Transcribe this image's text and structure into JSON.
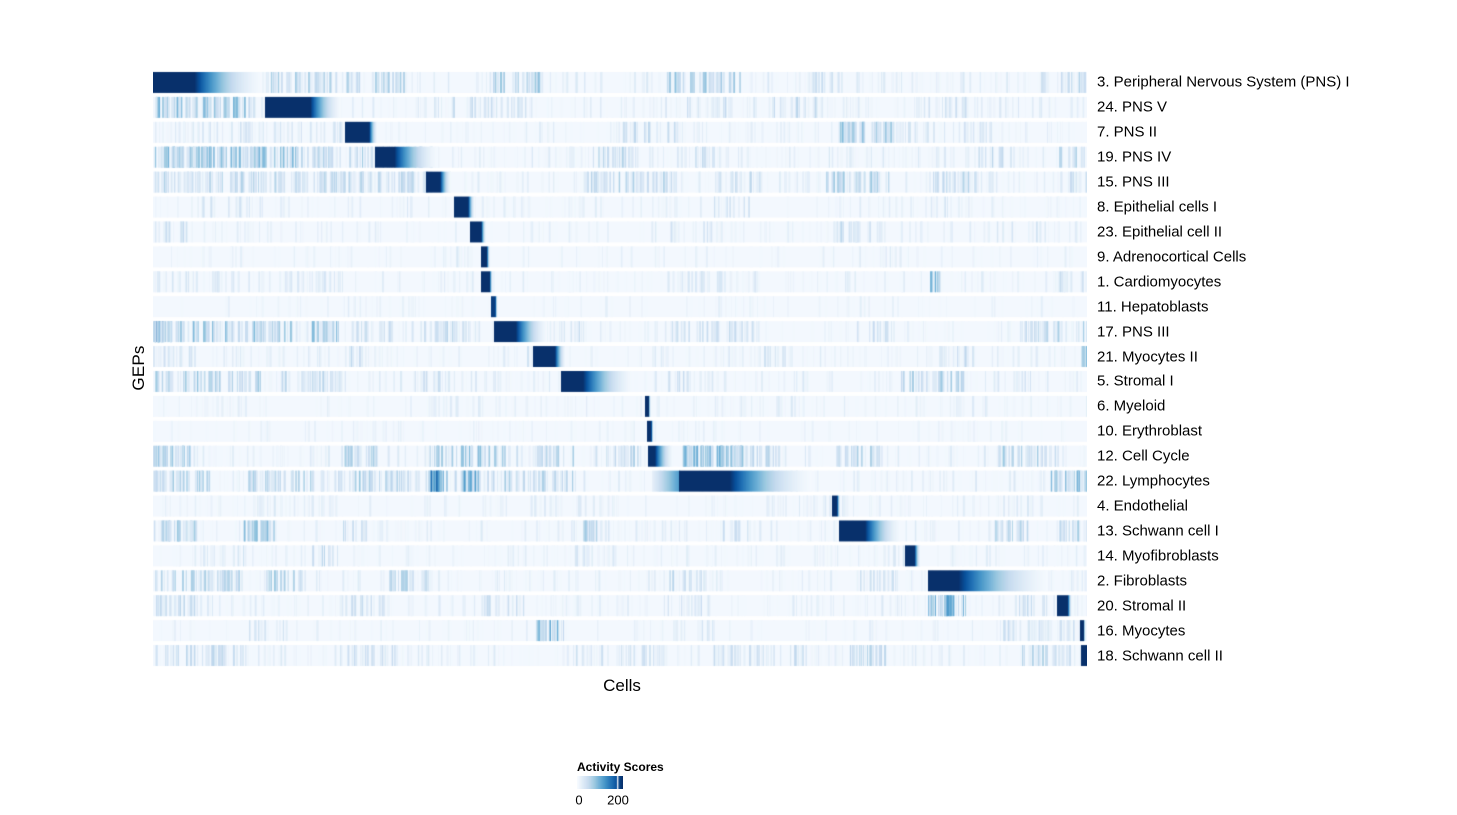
{
  "chart_data": {
    "type": "heatmap",
    "title": "",
    "xlabel": "Cells",
    "ylabel": "GEPs",
    "legend": {
      "title": "Activity Scores",
      "min_label": "0",
      "tick_label": "200",
      "min_value": 0,
      "tick_value": 200,
      "tick_frac": 0.885,
      "position": "bottom-center"
    },
    "colormap_stops": [
      [
        0.0,
        "#f7fbff"
      ],
      [
        0.125,
        "#deebf7"
      ],
      [
        0.25,
        "#c6dbef"
      ],
      [
        0.375,
        "#9ecae1"
      ],
      [
        0.5,
        "#6baed6"
      ],
      [
        0.625,
        "#4292c6"
      ],
      [
        0.75,
        "#2171b5"
      ],
      [
        0.875,
        "#08519c"
      ],
      [
        1.0,
        "#08306b"
      ]
    ],
    "background_level": 0.02,
    "grid": false,
    "axis_ticks": false,
    "rows": [
      {
        "label": "3. Peripheral Nervous System (PNS) I",
        "block": {
          "start": 0.0,
          "core": 0.044,
          "end": 0.125,
          "peak": 1
        },
        "base": [
          0.3,
          0.13
        ],
        "clusters": [
          [
            0.125,
            0.27,
            0.5,
            0.38
          ],
          [
            0.36,
            0.42,
            0.5,
            0.42
          ],
          [
            0.55,
            0.63,
            0.55,
            0.45
          ],
          [
            0.7,
            0.76,
            0.3,
            0.25
          ],
          [
            0.95,
            1.0,
            0.3,
            0.3
          ]
        ]
      },
      {
        "label": "24. PNS V",
        "block": {
          "start": 0.12,
          "core": 0.168,
          "end": 0.205,
          "peak": 1
        },
        "base": [
          0.3,
          0.13
        ],
        "clusters": [
          [
            0.0,
            0.115,
            0.75,
            0.5
          ],
          [
            0.3,
            0.4,
            0.3,
            0.25
          ],
          [
            0.57,
            0.62,
            0.3,
            0.3
          ],
          [
            0.66,
            0.72,
            0.3,
            0.3
          ],
          [
            0.83,
            0.88,
            0.25,
            0.25
          ]
        ]
      },
      {
        "label": "7. PNS II",
        "block": {
          "start": 0.206,
          "core": 0.231,
          "end": 0.241,
          "peak": 1
        },
        "base": [
          0.3,
          0.12
        ],
        "clusters": [
          [
            0.0,
            0.2,
            0.25,
            0.2
          ],
          [
            0.5,
            0.56,
            0.3,
            0.3
          ],
          [
            0.735,
            0.79,
            0.8,
            0.45
          ],
          [
            0.79,
            0.9,
            0.3,
            0.2
          ]
        ]
      },
      {
        "label": "19. PNS IV",
        "block": {
          "start": 0.238,
          "core": 0.258,
          "end": 0.31,
          "peak": 1
        },
        "base": [
          0.3,
          0.13
        ],
        "clusters": [
          [
            0.0,
            0.2,
            0.8,
            0.5
          ],
          [
            0.21,
            0.3,
            0.5,
            0.45
          ],
          [
            0.47,
            0.52,
            0.4,
            0.35
          ],
          [
            0.55,
            0.6,
            0.3,
            0.3
          ],
          [
            0.88,
            0.92,
            0.3,
            0.3
          ],
          [
            0.97,
            1.0,
            0.3,
            0.35
          ]
        ]
      },
      {
        "label": "15. PNS III",
        "block": {
          "start": 0.293,
          "core": 0.307,
          "end": 0.32,
          "peak": 1
        },
        "base": [
          0.3,
          0.13
        ],
        "clusters": [
          [
            0.0,
            0.3,
            0.5,
            0.35
          ],
          [
            0.46,
            0.56,
            0.45,
            0.35
          ],
          [
            0.6,
            0.65,
            0.3,
            0.3
          ],
          [
            0.72,
            0.79,
            0.6,
            0.4
          ],
          [
            0.83,
            0.9,
            0.5,
            0.35
          ],
          [
            0.97,
            1.0,
            0.4,
            0.3
          ]
        ]
      },
      {
        "label": "8. Epithelial cells I",
        "block": {
          "start": 0.323,
          "core": 0.337,
          "end": 0.345,
          "peak": 1
        },
        "base": [
          0.22,
          0.1
        ],
        "clusters": [
          [
            0.05,
            0.12,
            0.2,
            0.2
          ],
          [
            0.25,
            0.28,
            0.2,
            0.2
          ],
          [
            0.6,
            0.64,
            0.25,
            0.25
          ],
          [
            0.83,
            0.87,
            0.2,
            0.2
          ]
        ]
      },
      {
        "label": "23. Epithelial cell II",
        "block": {
          "start": 0.34,
          "core": 0.351,
          "end": 0.357,
          "peak": 1
        },
        "base": [
          0.22,
          0.1
        ],
        "clusters": [
          [
            0.0,
            0.04,
            0.3,
            0.3
          ],
          [
            0.55,
            0.6,
            0.25,
            0.25
          ],
          [
            0.72,
            0.78,
            0.4,
            0.3
          ],
          [
            0.9,
            0.95,
            0.25,
            0.2
          ]
        ]
      },
      {
        "label": "9. Adrenocortical Cells",
        "block": {
          "start": 0.352,
          "core": 0.357,
          "end": 0.361,
          "peak": 1
        },
        "base": [
          0.15,
          0.08
        ],
        "clusters": [
          [
            0.3,
            0.35,
            0.2,
            0.15
          ],
          [
            0.75,
            0.8,
            0.2,
            0.15
          ]
        ]
      },
      {
        "label": "1. Cardiomyocytes",
        "block": {
          "start": 0.352,
          "core": 0.36,
          "end": 0.364,
          "peak": 1
        },
        "base": [
          0.25,
          0.11
        ],
        "clusters": [
          [
            0.0,
            0.2,
            0.3,
            0.2
          ],
          [
            0.55,
            0.65,
            0.3,
            0.2
          ],
          [
            0.832,
            0.845,
            0.5,
            0.5
          ],
          [
            0.97,
            1.0,
            0.4,
            0.3
          ]
        ]
      },
      {
        "label": "11. Hepatoblasts",
        "block": {
          "start": 0.362,
          "core": 0.366,
          "end": 0.369,
          "peak": 0.95
        },
        "base": [
          0.15,
          0.08
        ],
        "clusters": [
          [
            0.2,
            0.25,
            0.15,
            0.12
          ],
          [
            0.6,
            0.65,
            0.15,
            0.12
          ]
        ]
      },
      {
        "label": "17. PNS III",
        "block": {
          "start": 0.366,
          "core": 0.388,
          "end": 0.426,
          "peak": 1
        },
        "base": [
          0.3,
          0.13
        ],
        "clusters": [
          [
            0.0,
            0.01,
            2.0,
            0.85
          ],
          [
            0.0,
            0.2,
            0.7,
            0.45
          ],
          [
            0.21,
            0.35,
            0.4,
            0.3
          ],
          [
            0.43,
            0.47,
            0.3,
            0.25
          ],
          [
            0.55,
            0.65,
            0.35,
            0.3
          ],
          [
            0.75,
            0.8,
            0.3,
            0.25
          ],
          [
            0.93,
            1.0,
            0.5,
            0.35
          ]
        ]
      },
      {
        "label": "21. Myocytes II",
        "block": {
          "start": 0.407,
          "core": 0.43,
          "end": 0.443,
          "peak": 1
        },
        "base": [
          0.28,
          0.12
        ],
        "clusters": [
          [
            0.0,
            0.05,
            0.3,
            0.25
          ],
          [
            0.21,
            0.24,
            0.3,
            0.3
          ],
          [
            0.4,
            0.44,
            0.3,
            0.25
          ],
          [
            0.64,
            0.68,
            0.3,
            0.25
          ],
          [
            0.84,
            0.88,
            0.4,
            0.3
          ],
          [
            0.994,
            1.0,
            1.5,
            0.9
          ]
        ]
      },
      {
        "label": "5. Stromal I",
        "block": {
          "start": 0.437,
          "core": 0.46,
          "end": 0.52,
          "peak": 1
        },
        "base": [
          0.3,
          0.13
        ],
        "clusters": [
          [
            0.0,
            0.12,
            0.5,
            0.4
          ],
          [
            0.13,
            0.2,
            0.4,
            0.3
          ],
          [
            0.28,
            0.32,
            0.3,
            0.3
          ],
          [
            0.55,
            0.6,
            0.3,
            0.25
          ],
          [
            0.8,
            0.87,
            0.5,
            0.4
          ],
          [
            0.9,
            0.94,
            0.3,
            0.25
          ]
        ]
      },
      {
        "label": "6. Myeloid",
        "block": {
          "start": 0.527,
          "core": 0.53,
          "end": 0.533,
          "peak": 1
        },
        "base": [
          0.2,
          0.09
        ],
        "clusters": [
          [
            0.05,
            0.1,
            0.2,
            0.15
          ],
          [
            0.3,
            0.35,
            0.2,
            0.15
          ],
          [
            0.6,
            0.7,
            0.25,
            0.15
          ],
          [
            0.85,
            0.9,
            0.2,
            0.15
          ]
        ]
      },
      {
        "label": "10. Erythroblast",
        "block": {
          "start": 0.529,
          "core": 0.533,
          "end": 0.536,
          "peak": 1
        },
        "base": [
          0.15,
          0.07
        ],
        "clusters": [
          [
            0.2,
            0.3,
            0.15,
            0.1
          ],
          [
            0.5,
            0.6,
            0.15,
            0.1
          ],
          [
            0.8,
            0.9,
            0.15,
            0.1
          ]
        ]
      },
      {
        "label": "12. Cell Cycle",
        "block": {
          "start": 0.53,
          "core": 0.537,
          "end": 0.559,
          "peak": 1
        },
        "base": [
          0.3,
          0.13
        ],
        "clusters": [
          [
            0.0,
            0.04,
            0.8,
            0.5
          ],
          [
            0.2,
            0.24,
            0.5,
            0.4
          ],
          [
            0.29,
            0.36,
            0.6,
            0.45
          ],
          [
            0.365,
            0.39,
            0.5,
            0.4
          ],
          [
            0.41,
            0.45,
            0.5,
            0.4
          ],
          [
            0.47,
            0.52,
            0.4,
            0.35
          ],
          [
            0.566,
            0.63,
            1.2,
            0.55
          ],
          [
            0.63,
            0.67,
            0.6,
            0.3
          ],
          [
            0.73,
            0.78,
            0.4,
            0.35
          ],
          [
            0.9,
            0.97,
            0.5,
            0.4
          ]
        ]
      },
      {
        "label": "22. Lymphocytes",
        "block": {
          "start": 0.564,
          "core": 0.617,
          "end": 0.716,
          "peak": 1
        },
        "lead": {
          "start": 0.535,
          "intensity": 0.5
        },
        "base": [
          0.3,
          0.13
        ],
        "clusters": [
          [
            0.0,
            0.06,
            0.6,
            0.45
          ],
          [
            0.1,
            0.25,
            0.5,
            0.4
          ],
          [
            0.25,
            0.45,
            0.4,
            0.35
          ],
          [
            0.295,
            0.315,
            1.2,
            0.85
          ],
          [
            0.33,
            0.35,
            0.8,
            0.6
          ],
          [
            0.96,
            1.0,
            0.8,
            0.5
          ]
        ]
      },
      {
        "label": "4. Endothelial",
        "block": {
          "start": 0.727,
          "core": 0.732,
          "end": 0.736,
          "peak": 1
        },
        "base": [
          0.2,
          0.09
        ],
        "clusters": [
          [
            0.1,
            0.2,
            0.25,
            0.15
          ],
          [
            0.4,
            0.5,
            0.25,
            0.15
          ],
          [
            0.65,
            0.75,
            0.25,
            0.15
          ],
          [
            0.9,
            0.95,
            0.2,
            0.15
          ]
        ]
      },
      {
        "label": "13. Schwann cell I",
        "block": {
          "start": 0.735,
          "core": 0.762,
          "end": 0.805,
          "peak": 1
        },
        "base": [
          0.28,
          0.12
        ],
        "clusters": [
          [
            0.0,
            0.05,
            0.6,
            0.45
          ],
          [
            0.09,
            0.13,
            0.6,
            0.45
          ],
          [
            0.2,
            0.23,
            0.4,
            0.35
          ],
          [
            0.46,
            0.49,
            0.5,
            0.45
          ],
          [
            0.6,
            0.64,
            0.3,
            0.25
          ],
          [
            0.9,
            0.94,
            0.5,
            0.4
          ],
          [
            0.97,
            1.0,
            0.5,
            0.4
          ]
        ]
      },
      {
        "label": "14. Myofibroblasts",
        "block": {
          "start": 0.806,
          "core": 0.815,
          "end": 0.822,
          "peak": 1
        },
        "base": [
          0.25,
          0.1
        ],
        "clusters": [
          [
            0.05,
            0.1,
            0.3,
            0.2
          ],
          [
            0.17,
            0.2,
            0.4,
            0.3
          ],
          [
            0.45,
            0.5,
            0.25,
            0.2
          ],
          [
            0.78,
            0.82,
            0.3,
            0.2
          ]
        ]
      },
      {
        "label": "2. Fibroblasts",
        "block": {
          "start": 0.83,
          "core": 0.862,
          "end": 0.97,
          "peak": 1
        },
        "base": [
          0.28,
          0.12
        ],
        "clusters": [
          [
            0.0,
            0.1,
            0.5,
            0.4
          ],
          [
            0.12,
            0.16,
            0.5,
            0.4
          ],
          [
            0.25,
            0.3,
            0.4,
            0.35
          ],
          [
            0.55,
            0.6,
            0.35,
            0.3
          ],
          [
            0.75,
            0.8,
            0.3,
            0.25
          ]
        ]
      },
      {
        "label": "20. Stromal II",
        "block": {
          "start": 0.968,
          "core": 0.979,
          "end": 0.984,
          "peak": 1
        },
        "base": [
          0.28,
          0.12
        ],
        "clusters": [
          [
            0.0,
            0.06,
            0.4,
            0.3
          ],
          [
            0.2,
            0.25,
            0.3,
            0.25
          ],
          [
            0.35,
            0.4,
            0.3,
            0.25
          ],
          [
            0.55,
            0.6,
            0.3,
            0.25
          ],
          [
            0.83,
            0.87,
            0.8,
            0.6
          ],
          [
            0.92,
            0.96,
            0.4,
            0.3
          ]
        ]
      },
      {
        "label": "16. Myocytes",
        "block": {
          "start": 0.993,
          "core": 0.996,
          "end": 0.998,
          "peak": 1
        },
        "base": [
          0.2,
          0.09
        ],
        "clusters": [
          [
            0.1,
            0.15,
            0.25,
            0.2
          ],
          [
            0.41,
            0.44,
            0.8,
            0.6
          ],
          [
            0.55,
            0.6,
            0.25,
            0.2
          ],
          [
            0.9,
            1.0,
            0.4,
            0.25
          ]
        ]
      },
      {
        "label": "18. Schwann cell II",
        "block": {
          "start": 0.994,
          "core": 1.0,
          "end": 1.0,
          "peak": 1
        },
        "base": [
          0.28,
          0.12
        ],
        "clusters": [
          [
            0.0,
            0.1,
            0.4,
            0.3
          ],
          [
            0.2,
            0.3,
            0.35,
            0.25
          ],
          [
            0.45,
            0.55,
            0.35,
            0.25
          ],
          [
            0.6,
            0.7,
            0.35,
            0.3
          ],
          [
            0.74,
            0.79,
            0.5,
            0.35
          ],
          [
            0.93,
            0.99,
            0.5,
            0.35
          ]
        ]
      }
    ]
  }
}
